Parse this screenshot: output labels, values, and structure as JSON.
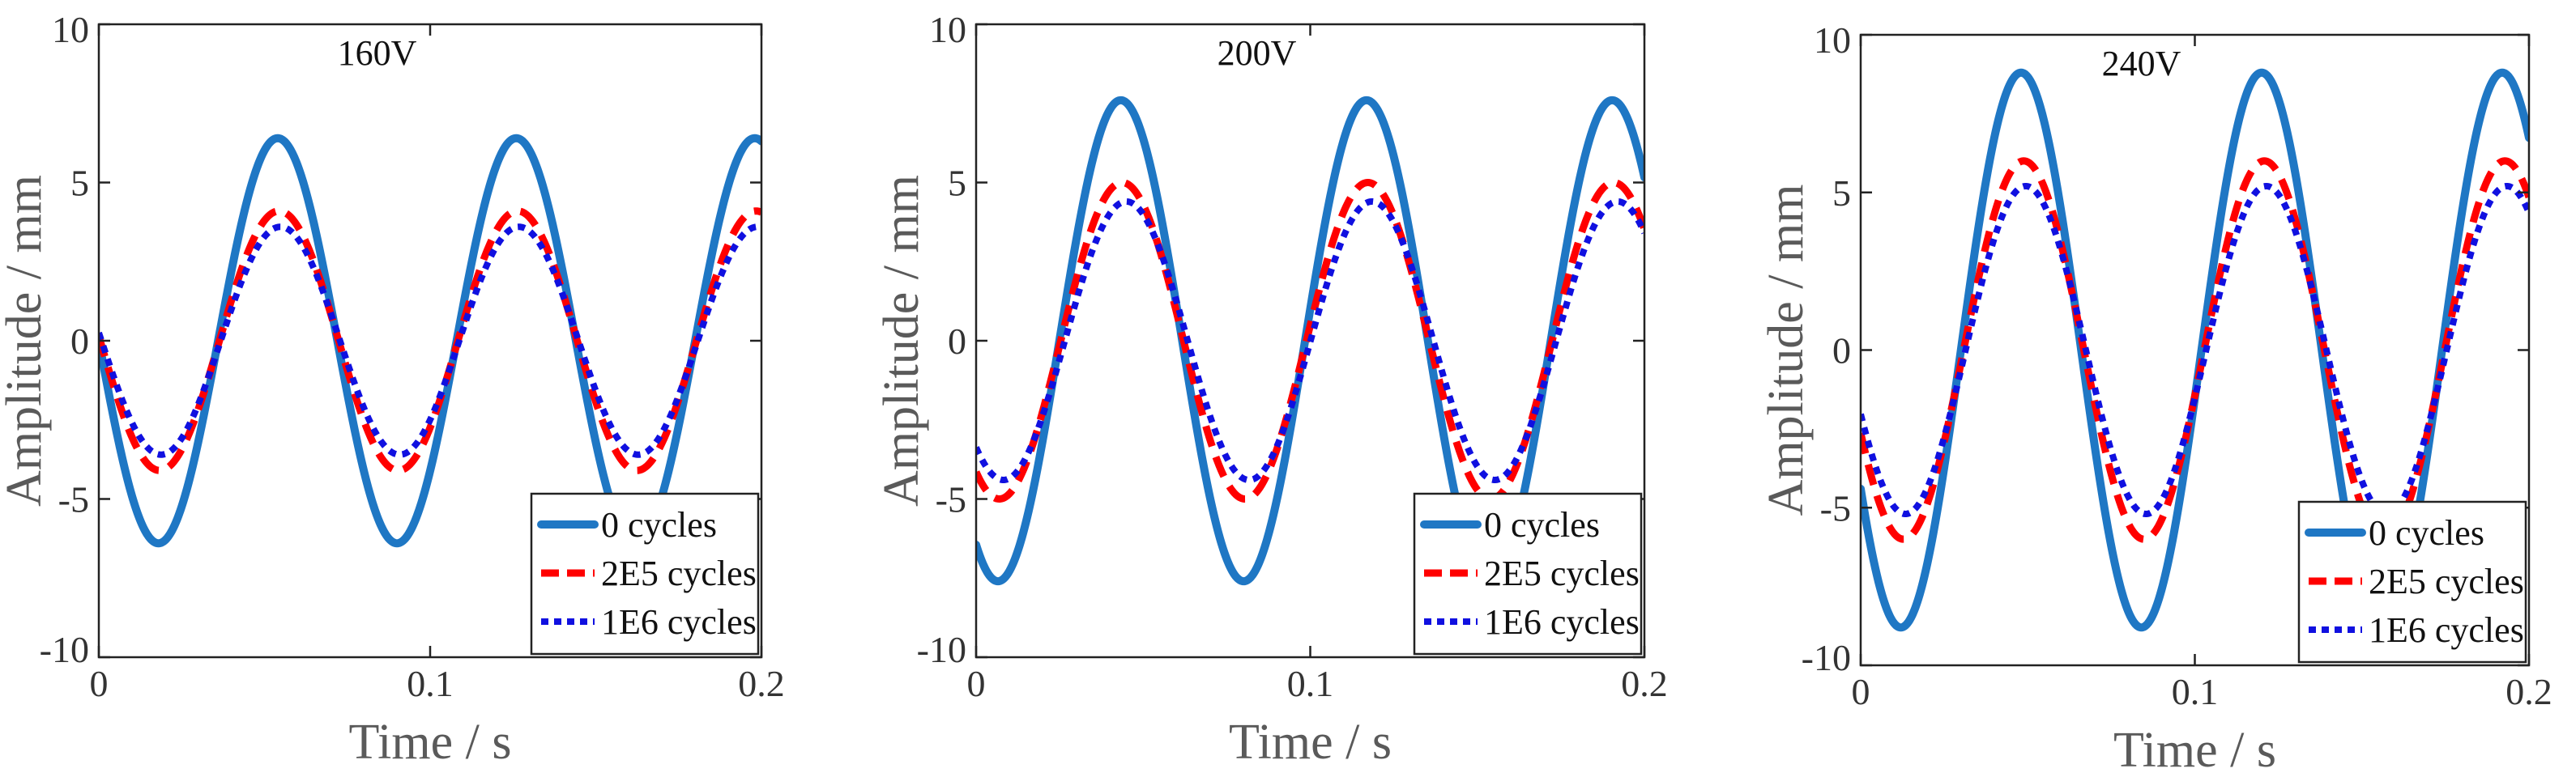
{
  "chart_data": [
    {
      "type": "line",
      "title": "160V",
      "xlabel": "Time / s",
      "ylabel": "Amplitude / mm",
      "xlim": [
        0,
        0.2
      ],
      "ylim": [
        -10,
        10
      ],
      "xticks": [
        "0",
        "0.1",
        "0.2"
      ],
      "yticks": [
        "-10",
        "-5",
        "0",
        "5",
        "10"
      ],
      "legend_position": "bottom-right",
      "frequency_hz": 13.89,
      "series": [
        {
          "name": "0 cycles",
          "amplitude": 6.4,
          "phase_deg": 180,
          "color": "#1f77c4",
          "style": "solid"
        },
        {
          "name": "2E5 cycles",
          "amplitude": 4.1,
          "phase_deg": 178,
          "color": "#ff0000",
          "style": "dashed"
        },
        {
          "name": "1E6 cycles",
          "amplitude": 3.6,
          "phase_deg": 176,
          "color": "#1010e0",
          "style": "dotted"
        }
      ]
    },
    {
      "type": "line",
      "title": "200V",
      "xlabel": "Time / s",
      "ylabel": "Amplitude / mm",
      "xlim": [
        0,
        0.2
      ],
      "ylim": [
        -10,
        10
      ],
      "xticks": [
        "0",
        "0.1",
        "0.2"
      ],
      "yticks": [
        "-10",
        "-5",
        "0",
        "5",
        "10"
      ],
      "legend_position": "bottom-right",
      "frequency_hz": 13.6,
      "series": [
        {
          "name": "0 cycles",
          "amplitude": 7.6,
          "phase_deg": 238,
          "color": "#1f77c4",
          "style": "solid"
        },
        {
          "name": "2E5 cycles",
          "amplitude": 5.0,
          "phase_deg": 236,
          "color": "#ff0000",
          "style": "dashed"
        },
        {
          "name": "1E6 cycles",
          "amplitude": 4.4,
          "phase_deg": 230,
          "color": "#1010e0",
          "style": "dotted"
        }
      ]
    },
    {
      "type": "line",
      "title": "240V",
      "xlabel": "Time / s",
      "ylabel": "Amplitude / mm",
      "xlim": [
        0,
        0.2
      ],
      "ylim": [
        -10,
        10
      ],
      "xticks": [
        "0",
        "0.1",
        "0.2"
      ],
      "yticks": [
        "-10",
        "-5",
        "0",
        "5",
        "10"
      ],
      "legend_position": "bottom-right",
      "frequency_hz": 13.89,
      "series": [
        {
          "name": "0 cycles",
          "amplitude": 8.8,
          "phase_deg": 210,
          "color": "#1f77c4",
          "style": "solid"
        },
        {
          "name": "2E5 cycles",
          "amplitude": 6.0,
          "phase_deg": 206,
          "color": "#ff0000",
          "style": "dashed"
        },
        {
          "name": "1E6 cycles",
          "amplitude": 5.2,
          "phase_deg": 203,
          "color": "#1010e0",
          "style": "dotted"
        }
      ]
    }
  ]
}
